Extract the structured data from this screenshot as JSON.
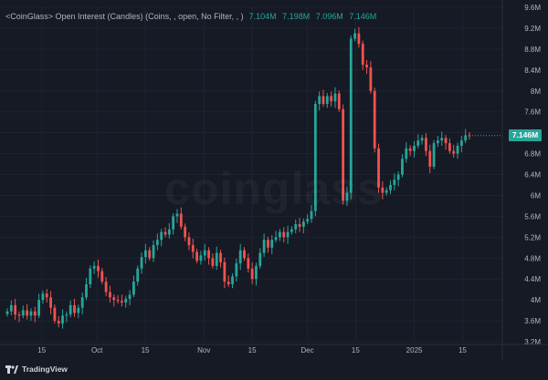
{
  "legend": {
    "title": "<CoinGlass> Open Interest (Candles) (Coins, , open, No Filter, , )",
    "open": "7.104M",
    "high": "7.198M",
    "low": "7.096M",
    "close": "7.146M"
  },
  "last_value_label": "7.146M",
  "watermark": "coinglass",
  "brand": "TradingView",
  "colors": {
    "background": "#161a25",
    "up": "#26a69a",
    "down": "#ef5350",
    "grid": "#1f2330",
    "axis_text": "#b2b5be"
  },
  "chart_data": {
    "type": "candlestick",
    "series_unit": "M",
    "ylim": [
      3.2,
      9.6
    ],
    "y_ticks": [
      3.2,
      3.6,
      4,
      4.4,
      4.8,
      5.2,
      5.6,
      6,
      6.4,
      6.8,
      7.2,
      7.6,
      8,
      8.4,
      8.8,
      9.2,
      9.6
    ],
    "y_tick_labels": [
      "3.2M",
      "3.6M",
      "4M",
      "4.4M",
      "4.8M",
      "5.2M",
      "5.6M",
      "6M",
      "6.4M",
      "6.8M",
      "7.2M",
      "7.6M",
      "8M",
      "8.4M",
      "8.8M",
      "9.2M",
      "9.6M"
    ],
    "x_tick_labels": [
      "15",
      "Oct",
      "15",
      "Nov",
      "15",
      "Dec",
      "15",
      "2025",
      "15"
    ],
    "start_date": "2024-09-05",
    "end_date": "2025-01-17",
    "close_values": [
      3.78,
      3.9,
      3.72,
      3.7,
      3.8,
      3.7,
      3.78,
      3.7,
      4.0,
      4.12,
      4.05,
      3.85,
      3.6,
      3.55,
      3.7,
      3.72,
      3.9,
      3.75,
      3.85,
      4.05,
      4.3,
      4.6,
      4.65,
      4.55,
      4.35,
      4.15,
      4.05,
      4.0,
      3.98,
      3.95,
      4.02,
      4.1,
      4.35,
      4.6,
      4.82,
      4.95,
      4.8,
      5.05,
      5.15,
      5.3,
      5.25,
      5.35,
      5.6,
      5.65,
      5.4,
      5.2,
      5.05,
      4.92,
      4.75,
      4.85,
      4.95,
      4.8,
      4.65,
      4.9,
      4.72,
      4.35,
      4.3,
      4.45,
      4.7,
      4.95,
      4.8,
      4.6,
      4.4,
      4.65,
      4.9,
      5.15,
      5.0,
      5.15,
      5.2,
      5.3,
      5.2,
      5.3,
      5.35,
      5.45,
      5.4,
      5.5,
      5.55,
      5.7,
      7.75,
      7.9,
      7.75,
      7.9,
      7.8,
      7.95,
      7.65,
      5.9,
      6.05,
      9.0,
      9.1,
      8.9,
      8.5,
      8.45,
      8.0,
      6.9,
      6.15,
      6.05,
      6.1,
      6.2,
      6.3,
      6.4,
      6.7,
      6.9,
      6.85,
      6.95,
      7.05,
      7.1,
      6.85,
      6.55,
      7.0,
      7.05,
      7.1,
      7.0,
      6.85,
      6.8,
      6.95,
      7.05,
      7.15,
      7.146
    ]
  }
}
